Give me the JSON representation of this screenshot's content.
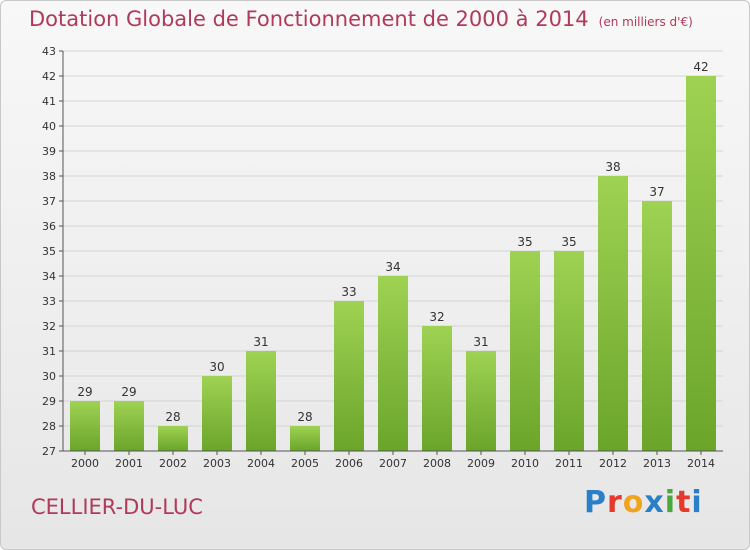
{
  "header": {
    "title": "Dotation Globale de Fonctionnement de 2000 à 2014",
    "unit": "(en milliers d'€)"
  },
  "footer": {
    "commune": "CELLIER-DU-LUC",
    "logo_letters": [
      "P",
      "r",
      "o",
      "x",
      "i",
      "t",
      "i"
    ],
    "logo_colors": [
      "#2a7fc9",
      "#e4392b",
      "#f0a41d",
      "#2a7fc9",
      "#4aa83c",
      "#e4392b",
      "#2a7fc9"
    ]
  },
  "colors": {
    "bar_light": "#9fd253",
    "bar_dark": "#6aa52a",
    "title": "#b03a5a"
  },
  "chart_data": {
    "type": "bar",
    "title": "Dotation Globale de Fonctionnement de 2000 à 2014",
    "subtitle": "(en milliers d'€)",
    "categories": [
      "2000",
      "2001",
      "2002",
      "2003",
      "2004",
      "2005",
      "2006",
      "2007",
      "2008",
      "2009",
      "2010",
      "2011",
      "2012",
      "2013",
      "2014"
    ],
    "values": [
      29,
      29,
      28,
      30,
      31,
      28,
      33,
      34,
      32,
      31,
      35,
      35,
      38,
      37,
      42
    ],
    "ylim": [
      27,
      43
    ],
    "yticks": [
      27,
      28,
      29,
      30,
      31,
      32,
      33,
      34,
      35,
      36,
      37,
      38,
      39,
      40,
      41,
      42,
      43
    ],
    "grid": true
  }
}
